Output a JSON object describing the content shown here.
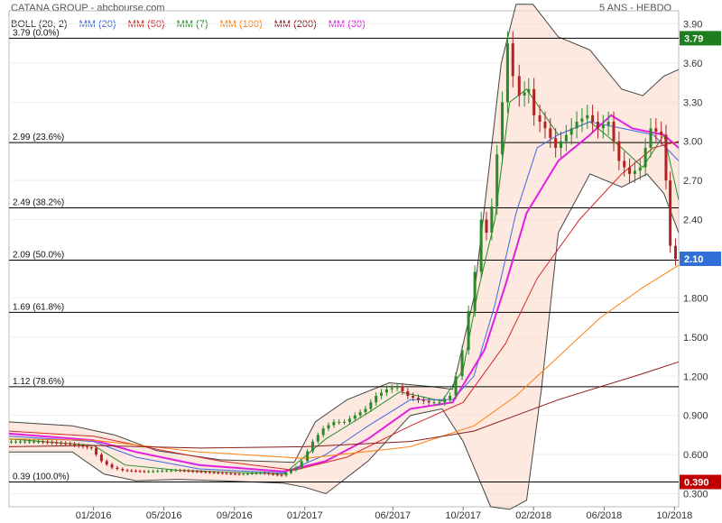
{
  "header": {
    "title": "CATANA GROUP - abcbourse.com",
    "period": "5 ANS - HEBDO"
  },
  "chart_data": {
    "type": "candlestick",
    "legend": [
      {
        "label": "BOLL (20, 2)",
        "color": "#333333"
      },
      {
        "label": "MM (20)",
        "color": "#4169e1"
      },
      {
        "label": "MM (50)",
        "color": "#d62728"
      },
      {
        "label": "MM (7)",
        "color": "#2a8a2a"
      },
      {
        "label": "MM (100)",
        "color": "#ff7f0e"
      },
      {
        "label": "MM (200)",
        "color": "#8b1a1a"
      },
      {
        "label": "MM (30)",
        "color": "#e020e0"
      }
    ],
    "y_ticks": [
      "3.90",
      "3.60",
      "3.30",
      "3.00",
      "2.70",
      "2.40",
      "2.10",
      "1.800",
      "1.500",
      "1.200",
      "0.900",
      "0.600",
      "0.300"
    ],
    "y_tick_values": [
      3.9,
      3.6,
      3.3,
      3.0,
      2.7,
      2.4,
      2.1,
      1.8,
      1.5,
      1.2,
      0.9,
      0.6,
      0.3
    ],
    "ylim": [
      0.2,
      4.0
    ],
    "x_ticks": [
      {
        "label": "01/2016",
        "x": 2016.0
      },
      {
        "label": "05/2016",
        "x": 2016.333
      },
      {
        "label": "09/2016",
        "x": 2016.667
      },
      {
        "label": "01/2017",
        "x": 2017.0
      },
      {
        "label": "06/2017",
        "x": 2017.417
      },
      {
        "label": "10/2017",
        "x": 2017.75
      },
      {
        "label": "02/2018",
        "x": 2018.083
      },
      {
        "label": "06/2018",
        "x": 2018.417
      },
      {
        "label": "10/2018",
        "x": 2018.75
      }
    ],
    "xlim": [
      2015.6,
      2018.77
    ],
    "fibonacci": [
      {
        "label": "3.79  (0.0%)",
        "value": 3.79
      },
      {
        "label": "2.99  (23.6%)",
        "value": 2.99
      },
      {
        "label": "2.49  (38.2%)",
        "value": 2.49
      },
      {
        "label": "2.09  (50.0%)",
        "value": 2.09
      },
      {
        "label": "1.69  (61.8%)",
        "value": 1.69
      },
      {
        "label": "1.12  (78.6%)",
        "value": 1.12
      },
      {
        "label": "0.39  (100.0%)",
        "value": 0.39
      }
    ],
    "price_badges": [
      {
        "label": "3.79",
        "value": 3.79,
        "color": "#1e7d1e"
      },
      {
        "label": "2.10",
        "value": 2.1,
        "color": "#2f6fd6"
      },
      {
        "label": "0.390",
        "value": 0.39,
        "color": "#c00000"
      }
    ],
    "price_series": [
      [
        2015.6,
        0.7
      ],
      [
        2015.75,
        0.7
      ],
      [
        2015.9,
        0.68
      ],
      [
        2016.0,
        0.65
      ],
      [
        2016.05,
        0.55
      ],
      [
        2016.1,
        0.5
      ],
      [
        2016.15,
        0.48
      ],
      [
        2016.25,
        0.47
      ],
      [
        2016.4,
        0.48
      ],
      [
        2016.5,
        0.47
      ],
      [
        2016.6,
        0.46
      ],
      [
        2016.7,
        0.45
      ],
      [
        2016.8,
        0.46
      ],
      [
        2016.9,
        0.44
      ],
      [
        2016.97,
        0.5
      ],
      [
        2017.0,
        0.55
      ],
      [
        2017.05,
        0.7
      ],
      [
        2017.1,
        0.8
      ],
      [
        2017.15,
        0.85
      ],
      [
        2017.2,
        0.85
      ],
      [
        2017.25,
        0.9
      ],
      [
        2017.3,
        0.95
      ],
      [
        2017.35,
        1.05
      ],
      [
        2017.4,
        1.1
      ],
      [
        2017.45,
        1.12
      ],
      [
        2017.5,
        1.05
      ],
      [
        2017.55,
        1.02
      ],
      [
        2017.6,
        1.0
      ],
      [
        2017.65,
        1.0
      ],
      [
        2017.7,
        1.05
      ],
      [
        2017.73,
        1.2
      ],
      [
        2017.76,
        1.4
      ],
      [
        2017.79,
        1.7
      ],
      [
        2017.82,
        2.0
      ],
      [
        2017.85,
        2.4
      ],
      [
        2017.87,
        2.3
      ],
      [
        2017.9,
        2.5
      ],
      [
        2017.92,
        2.9
      ],
      [
        2017.95,
        3.3
      ],
      [
        2017.97,
        3.75
      ],
      [
        2018.0,
        3.5
      ],
      [
        2018.03,
        3.35
      ],
      [
        2018.07,
        3.4
      ],
      [
        2018.1,
        3.2
      ],
      [
        2018.15,
        3.1
      ],
      [
        2018.2,
        2.95
      ],
      [
        2018.25,
        3.05
      ],
      [
        2018.3,
        3.15
      ],
      [
        2018.35,
        3.2
      ],
      [
        2018.4,
        3.1
      ],
      [
        2018.45,
        3.15
      ],
      [
        2018.5,
        2.85
      ],
      [
        2018.55,
        2.75
      ],
      [
        2018.6,
        2.8
      ],
      [
        2018.65,
        3.1
      ],
      [
        2018.7,
        3.05
      ],
      [
        2018.72,
        2.7
      ],
      [
        2018.74,
        2.2
      ],
      [
        2018.77,
        2.1
      ]
    ],
    "ma_series": [
      {
        "name": "MM (7)",
        "color": "#2a8a2a",
        "width": 1,
        "points": [
          [
            2015.6,
            0.72
          ],
          [
            2016.0,
            0.67
          ],
          [
            2016.15,
            0.52
          ],
          [
            2016.4,
            0.48
          ],
          [
            2016.9,
            0.45
          ],
          [
            2017.1,
            0.72
          ],
          [
            2017.3,
            0.92
          ],
          [
            2017.45,
            1.08
          ],
          [
            2017.65,
            1.01
          ],
          [
            2017.75,
            1.25
          ],
          [
            2017.82,
            1.85
          ],
          [
            2017.9,
            2.4
          ],
          [
            2017.97,
            3.3
          ],
          [
            2018.05,
            3.4
          ],
          [
            2018.2,
            3.05
          ],
          [
            2018.35,
            3.15
          ],
          [
            2018.5,
            2.95
          ],
          [
            2018.6,
            2.8
          ],
          [
            2018.7,
            3.05
          ],
          [
            2018.77,
            2.55
          ]
        ]
      },
      {
        "name": "MM (20)",
        "color": "#4169e1",
        "width": 1,
        "points": [
          [
            2015.6,
            0.74
          ],
          [
            2016.0,
            0.7
          ],
          [
            2016.2,
            0.58
          ],
          [
            2016.5,
            0.49
          ],
          [
            2016.9,
            0.46
          ],
          [
            2017.1,
            0.6
          ],
          [
            2017.3,
            0.82
          ],
          [
            2017.5,
            1.02
          ],
          [
            2017.7,
            1.02
          ],
          [
            2017.8,
            1.2
          ],
          [
            2017.9,
            1.75
          ],
          [
            2018.0,
            2.45
          ],
          [
            2018.1,
            2.95
          ],
          [
            2018.2,
            3.05
          ],
          [
            2018.35,
            3.15
          ],
          [
            2018.5,
            3.1
          ],
          [
            2018.65,
            3.05
          ],
          [
            2018.77,
            2.85
          ]
        ]
      },
      {
        "name": "MM (30)",
        "color": "#e020e0",
        "width": 2,
        "points": [
          [
            2015.6,
            0.76
          ],
          [
            2016.0,
            0.71
          ],
          [
            2016.2,
            0.62
          ],
          [
            2016.5,
            0.52
          ],
          [
            2016.9,
            0.47
          ],
          [
            2017.1,
            0.55
          ],
          [
            2017.3,
            0.72
          ],
          [
            2017.5,
            0.95
          ],
          [
            2017.7,
            1.0
          ],
          [
            2017.85,
            1.4
          ],
          [
            2017.95,
            1.9
          ],
          [
            2018.05,
            2.45
          ],
          [
            2018.2,
            2.85
          ],
          [
            2018.35,
            3.05
          ],
          [
            2018.45,
            3.2
          ],
          [
            2018.55,
            3.1
          ],
          [
            2018.7,
            3.05
          ],
          [
            2018.77,
            2.95
          ]
        ]
      },
      {
        "name": "MM (50)",
        "color": "#d62728",
        "width": 1,
        "points": [
          [
            2015.6,
            0.78
          ],
          [
            2016.0,
            0.74
          ],
          [
            2016.3,
            0.64
          ],
          [
            2016.6,
            0.55
          ],
          [
            2016.95,
            0.48
          ],
          [
            2017.2,
            0.58
          ],
          [
            2017.5,
            0.82
          ],
          [
            2017.75,
            1.0
          ],
          [
            2017.95,
            1.45
          ],
          [
            2018.1,
            1.95
          ],
          [
            2018.3,
            2.4
          ],
          [
            2018.5,
            2.75
          ],
          [
            2018.65,
            2.95
          ],
          [
            2018.77,
            3.0
          ]
        ]
      },
      {
        "name": "MM (100)",
        "color": "#ff7f0e",
        "width": 1,
        "points": [
          [
            2015.6,
            0.72
          ],
          [
            2016.0,
            0.71
          ],
          [
            2016.5,
            0.62
          ],
          [
            2017.0,
            0.57
          ],
          [
            2017.5,
            0.66
          ],
          [
            2017.8,
            0.82
          ],
          [
            2018.0,
            1.05
          ],
          [
            2018.2,
            1.35
          ],
          [
            2018.4,
            1.65
          ],
          [
            2018.6,
            1.88
          ],
          [
            2018.77,
            2.05
          ]
        ]
      },
      {
        "name": "MM (200)",
        "color": "#8b1a1a",
        "width": 1,
        "points": [
          [
            2015.6,
            0.66
          ],
          [
            2016.0,
            0.67
          ],
          [
            2016.5,
            0.65
          ],
          [
            2017.0,
            0.66
          ],
          [
            2017.5,
            0.7
          ],
          [
            2017.8,
            0.78
          ],
          [
            2018.0,
            0.9
          ],
          [
            2018.2,
            1.02
          ],
          [
            2018.4,
            1.12
          ],
          [
            2018.6,
            1.22
          ],
          [
            2018.77,
            1.31
          ]
        ]
      }
    ],
    "boll_upper": [
      [
        2015.6,
        0.85
      ],
      [
        2015.9,
        0.82
      ],
      [
        2016.1,
        0.75
      ],
      [
        2016.3,
        0.63
      ],
      [
        2016.6,
        0.56
      ],
      [
        2016.95,
        0.54
      ],
      [
        2017.05,
        0.85
      ],
      [
        2017.2,
        1.02
      ],
      [
        2017.4,
        1.15
      ],
      [
        2017.6,
        1.12
      ],
      [
        2017.7,
        1.1
      ],
      [
        2017.8,
        1.8
      ],
      [
        2017.88,
        2.9
      ],
      [
        2017.93,
        3.6
      ],
      [
        2018.0,
        4.05
      ],
      [
        2018.08,
        4.05
      ],
      [
        2018.2,
        3.8
      ],
      [
        2018.35,
        3.7
      ],
      [
        2018.5,
        3.4
      ],
      [
        2018.6,
        3.35
      ],
      [
        2018.7,
        3.5
      ],
      [
        2018.77,
        3.55
      ]
    ],
    "boll_lower": [
      [
        2015.6,
        0.62
      ],
      [
        2015.9,
        0.62
      ],
      [
        2016.05,
        0.45
      ],
      [
        2016.2,
        0.4
      ],
      [
        2016.4,
        0.41
      ],
      [
        2016.6,
        0.4
      ],
      [
        2016.9,
        0.38
      ],
      [
        2017.0,
        0.35
      ],
      [
        2017.1,
        0.3
      ],
      [
        2017.3,
        0.55
      ],
      [
        2017.5,
        0.9
      ],
      [
        2017.65,
        0.95
      ],
      [
        2017.75,
        0.7
      ],
      [
        2017.88,
        0.2
      ],
      [
        2017.97,
        0.18
      ],
      [
        2018.05,
        0.25
      ],
      [
        2018.12,
        1.1
      ],
      [
        2018.2,
        2.3
      ],
      [
        2018.35,
        2.75
      ],
      [
        2018.5,
        2.65
      ],
      [
        2018.62,
        2.75
      ],
      [
        2018.7,
        2.6
      ],
      [
        2018.77,
        2.3
      ]
    ]
  }
}
